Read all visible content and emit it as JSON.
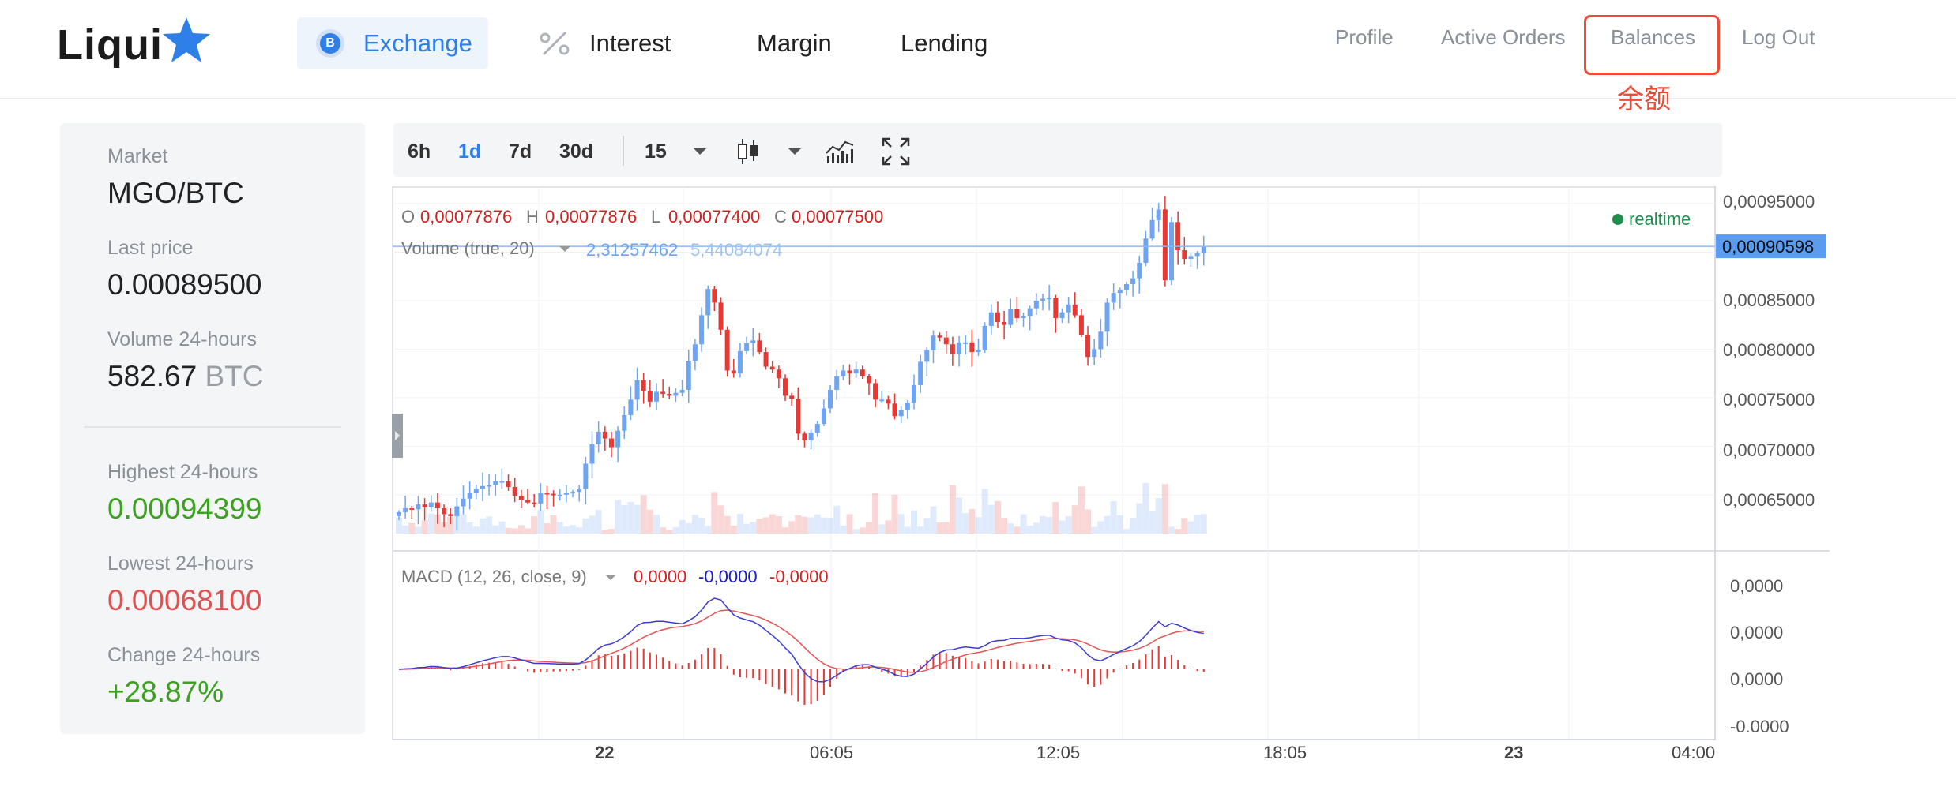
{
  "header": {
    "logo": "Liqui",
    "nav": {
      "exchange_badge": "B",
      "exchange": "Exchange",
      "interest": "Interest",
      "margin": "Margin",
      "lending": "Lending"
    },
    "user_nav": {
      "profile": "Profile",
      "active_orders": "Active Orders",
      "balances": "Balances",
      "logout": "Log Out"
    },
    "annotation": "余额"
  },
  "market_panel": {
    "market_label": "Market",
    "market_value": "MGO/BTC",
    "last_price_label": "Last price",
    "last_price_value": "0.00089500",
    "volume_label": "Volume 24-hours",
    "volume_value": "582.67",
    "volume_unit": "BTC",
    "highest_label": "Highest 24-hours",
    "highest_value": "0.00094399",
    "lowest_label": "Lowest 24-hours",
    "lowest_value": "0.00068100",
    "change_label": "Change 24-hours",
    "change_value": "+28.87%"
  },
  "toolbar": {
    "ranges": [
      "6h",
      "1d",
      "7d",
      "30d"
    ],
    "active_range": "1d",
    "interval": "15",
    "icons": [
      "candlestick-icon",
      "indicators-icon",
      "fullscreen-icon"
    ]
  },
  "colors": {
    "accent": "#2f7fe8",
    "up": "#6ea4f2",
    "down": "#e53935",
    "green": "#3ba21f",
    "red": "#e05252",
    "annotation": "#ee4a36"
  },
  "chart_data": {
    "type": "candlestick",
    "ohlc_header": {
      "o_label": "O",
      "o": "0,00077876",
      "h_label": "H",
      "h": "0,00077876",
      "l_label": "L",
      "l": "0,00077400",
      "c_label": "C",
      "c": "0,00077500"
    },
    "volume_label": "Volume (true, 20)",
    "volume_values": [
      "2,31257462",
      "5,44084074"
    ],
    "realtime_label": "realtime",
    "current_price": "0,00090598",
    "y_ticks": [
      "0,00095000",
      "0,00090000",
      "0,00085000",
      "0,00080000",
      "0,00075000",
      "0,00070000",
      "0,00065000"
    ],
    "x_ticks": [
      "22",
      "06:05",
      "12:05",
      "18:05",
      "23",
      "04:00"
    ],
    "macd_label": "MACD (12, 26, close, 9)",
    "macd_values": [
      "0,0000",
      "-0,0000",
      "-0,0000"
    ],
    "macd_y_ticks": [
      "0,0000",
      "0,0000",
      "0,0000",
      "-0.0000"
    ],
    "price_range": [
      0.00061,
      0.000963
    ],
    "close_series": [
      0.000632,
      0.000636,
      0.000635,
      0.00064,
      0.000637,
      0.000642,
      0.000636,
      0.00063,
      0.000628,
      0.000638,
      0.000646,
      0.000652,
      0.000656,
      0.000659,
      0.00066,
      0.000664,
      0.000664,
      0.000658,
      0.000649,
      0.000645,
      0.000642,
      0.000641,
      0.000652,
      0.000651,
      0.00065,
      0.00065,
      0.000652,
      0.000653,
      0.000656,
      0.000682,
      0.000702,
      0.000715,
      0.000708,
      0.000699,
      0.000716,
      0.000732,
      0.000748,
      0.000768,
      0.000757,
      0.000746,
      0.000756,
      0.000754,
      0.000752,
      0.000755,
      0.000758,
      0.000788,
      0.000805,
      0.000835,
      0.000862,
      0.000848,
      0.00082,
      0.000778,
      0.000775,
      0.000798,
      0.000806,
      0.000809,
      0.000797,
      0.000782,
      0.000779,
      0.00077,
      0.000752,
      0.000749,
      0.000713,
      0.000706,
      0.000714,
      0.000723,
      0.000739,
      0.000758,
      0.000772,
      0.000778,
      0.000775,
      0.000779,
      0.000772,
      0.000765,
      0.000748,
      0.000748,
      0.000744,
      0.000731,
      0.000737,
      0.000745,
      0.000763,
      0.000787,
      0.000799,
      0.000814,
      0.000812,
      0.000805,
      0.000795,
      0.000807,
      0.000807,
      0.000797,
      0.000799,
      0.000824,
      0.000838,
      0.000828,
      0.000825,
      0.000841,
      0.000832,
      0.000834,
      0.000842,
      0.00085,
      0.000852,
      0.000853,
      0.000832,
      0.000838,
      0.000846,
      0.000835,
      0.000815,
      0.000792,
      0.0008,
      0.000818,
      0.000848,
      0.000858,
      0.000861,
      0.000867,
      0.000873,
      0.000889,
      0.000914,
      0.000933,
      0.000944,
      0.000871,
      0.000931,
      0.000902,
      0.000893,
      0.000896,
      0.000899,
      0.000906
    ]
  }
}
